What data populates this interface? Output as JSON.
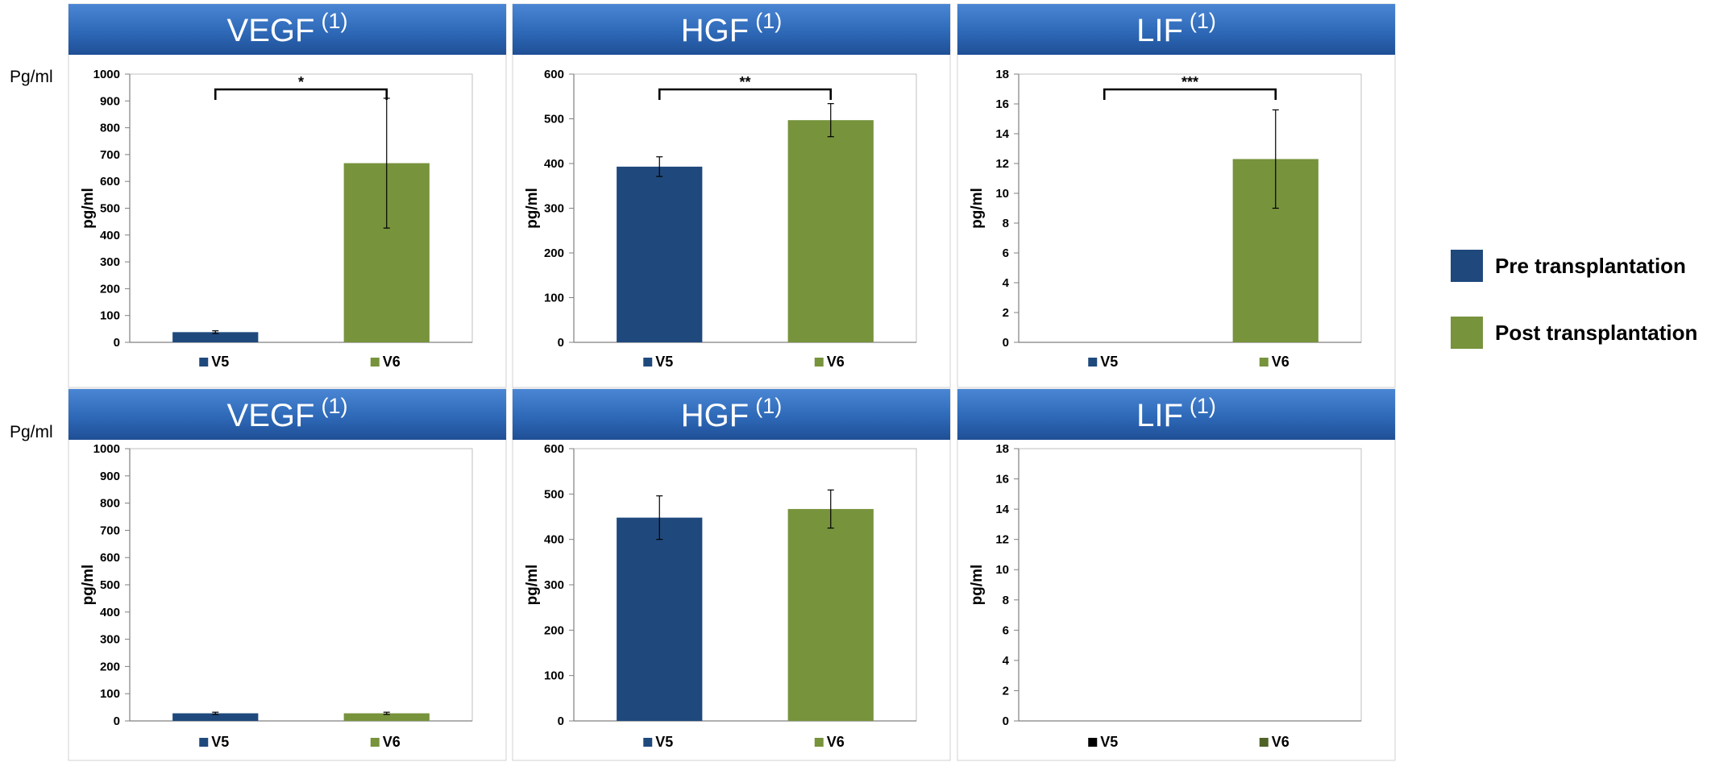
{
  "side_labels": [
    "Pg/ml",
    "Pg/ml"
  ],
  "legend": {
    "items": [
      {
        "label": "Pre transplantation",
        "color": "#1F497D"
      },
      {
        "label": "Post transplantation",
        "color": "#77933C"
      }
    ]
  },
  "chart_data": [
    {
      "type": "bar",
      "title": "VEGF",
      "title_sup": "(1)",
      "ylabel": "pg/ml",
      "categories": [
        "V5",
        "V6"
      ],
      "values": [
        38,
        668
      ],
      "errors": [
        5,
        242
      ],
      "colors": [
        "#1F497D",
        "#77933C"
      ],
      "ylim": [
        0,
        1000
      ],
      "yticks": [
        "0",
        "100",
        "200",
        "300",
        "400",
        "500",
        "600",
        "700",
        "800",
        "900",
        "1000"
      ],
      "significance": "*"
    },
    {
      "type": "bar",
      "title": "HGF",
      "title_sup": "(1)",
      "ylabel": "pg/ml",
      "categories": [
        "V5",
        "V6"
      ],
      "values": [
        393,
        497
      ],
      "errors": [
        22,
        37
      ],
      "colors": [
        "#1F497D",
        "#77933C"
      ],
      "ylim": [
        0,
        600
      ],
      "yticks": [
        "0",
        "100",
        "200",
        "300",
        "400",
        "500",
        "600"
      ],
      "significance": "**"
    },
    {
      "type": "bar",
      "title": "LIF",
      "title_sup": "(1)",
      "ylabel": "pg/ml",
      "categories": [
        "V5",
        "V6"
      ],
      "values": [
        0,
        12.3
      ],
      "errors": [
        0,
        3.3
      ],
      "colors": [
        "#1F497D",
        "#77933C"
      ],
      "ylim": [
        0,
        18
      ],
      "yticks": [
        "0",
        "2",
        "4",
        "6",
        "8",
        "10",
        "12",
        "14",
        "16",
        "18"
      ],
      "significance": "***"
    },
    {
      "type": "bar",
      "title": "VEGF",
      "title_sup": "(1)",
      "ylabel": "pg/ml",
      "categories": [
        "V5",
        "V6"
      ],
      "values": [
        28,
        28
      ],
      "errors": [
        4,
        4
      ],
      "colors": [
        "#1F497D",
        "#77933C"
      ],
      "ylim": [
        0,
        1000
      ],
      "yticks": [
        "0",
        "100",
        "200",
        "300",
        "400",
        "500",
        "600",
        "700",
        "800",
        "900",
        "1000"
      ],
      "significance": ""
    },
    {
      "type": "bar",
      "title": "HGF",
      "title_sup": "(1)",
      "ylabel": "pg/ml",
      "categories": [
        "V5",
        "V6"
      ],
      "values": [
        448,
        467
      ],
      "errors": [
        48,
        42
      ],
      "colors": [
        "#1F497D",
        "#77933C"
      ],
      "ylim": [
        0,
        600
      ],
      "yticks": [
        "0",
        "100",
        "200",
        "300",
        "400",
        "500",
        "600"
      ],
      "significance": ""
    },
    {
      "type": "bar",
      "title": "LIF",
      "title_sup": "(1)",
      "ylabel": "pg/ml",
      "categories": [
        "V5",
        "V6"
      ],
      "values": [
        0,
        0
      ],
      "errors": [
        0,
        0
      ],
      "colors": [
        "#000000",
        "#4F6228"
      ],
      "ylim": [
        0,
        18
      ],
      "yticks": [
        "0",
        "2",
        "4",
        "6",
        "8",
        "10",
        "12",
        "14",
        "16",
        "18"
      ],
      "significance": ""
    }
  ]
}
